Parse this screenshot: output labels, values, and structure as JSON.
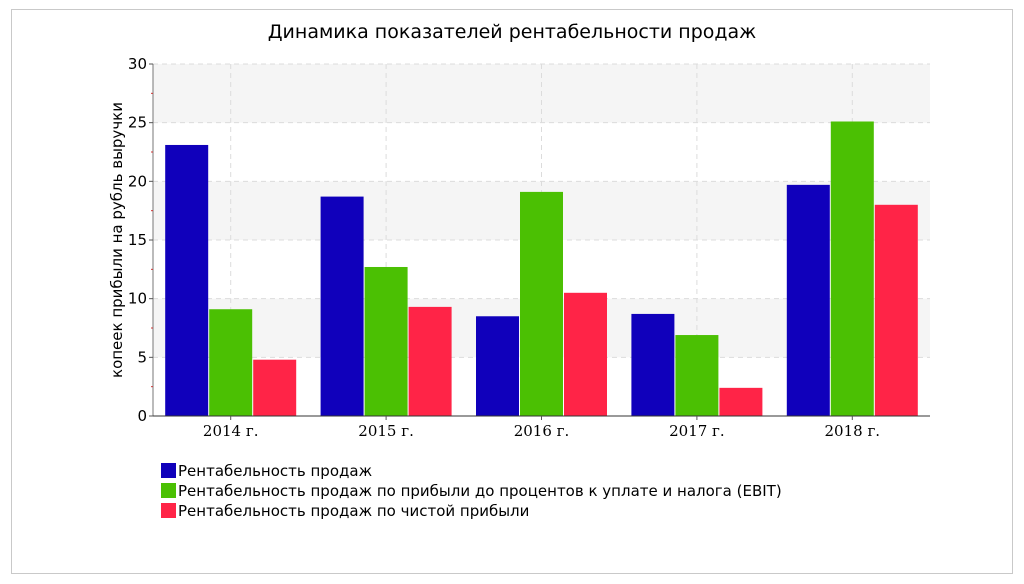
{
  "chart_data": {
    "type": "bar",
    "title": "Динамика показателей рентабельности продаж",
    "xlabel": "",
    "ylabel": "копеек прибыли на рубль выручки",
    "ylim": [
      0,
      30
    ],
    "yticks": [
      0,
      5,
      10,
      15,
      20,
      25,
      30
    ],
    "grid": true,
    "legend_position": "bottom-left",
    "categories": [
      "2014 г.",
      "2015 г.",
      "2016 г.",
      "2017 г.",
      "2018 г."
    ],
    "series": [
      {
        "name": "Рентабельность продаж",
        "color": "#1000bb",
        "values": [
          23.1,
          18.7,
          8.5,
          8.7,
          19.7
        ]
      },
      {
        "name": "Рентабельность продаж по прибыли до процентов к уплате и налога (EBIT)",
        "color": "#4bc003",
        "values": [
          9.1,
          12.7,
          19.1,
          6.9,
          25.1
        ]
      },
      {
        "name": "Рентабельность продаж по чистой прибыли",
        "color": "#ff2447",
        "values": [
          4.8,
          9.3,
          10.5,
          2.4,
          18.0
        ]
      }
    ]
  }
}
